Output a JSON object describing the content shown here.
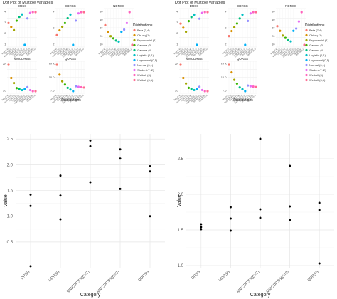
{
  "chart_data": [
    {
      "type": "scatter",
      "title": "Dot Plot of Multiple Variables",
      "xlabel": "Distributions",
      "legend_title": "Distributions",
      "legend_position": "right",
      "distributions": [
        "Beta (7,4)",
        "Chi-sq (1)",
        "Exponential (1)",
        "Gamma (3)",
        "Gamma (4)",
        "Logistic (0,1)",
        "Lognormal (0,1)",
        "Normal (0,1)",
        "Student-T (2)",
        "Weibull (6)",
        "Weibull (6,1)"
      ],
      "colors": [
        "#F8766D",
        "#D89000",
        "#A3A500",
        "#39B600",
        "#00BF7D",
        "#00BFC4",
        "#00B0F6",
        "#9590FF",
        "#E76BF3",
        "#FF62BC",
        "#FF6C91"
      ],
      "panels": [
        {
          "title": "DRSS",
          "values": [
            3.1,
            2.6,
            2.2,
            3.4,
            3.9,
            4.2,
            0.3,
            3.7,
            4.4,
            4.5,
            4.5
          ],
          "yticks": [
            "4",
            "3",
            "2",
            "1"
          ]
        },
        {
          "title": "EDRSS",
          "values": [
            2.1,
            2.5,
            2.8,
            3.1,
            3.5,
            3.8,
            1.3,
            3.3,
            3.9,
            4.0,
            4.0
          ],
          "yticks": [
            "4",
            "3",
            "2"
          ]
        },
        {
          "title": "NDRSS",
          "values": [
            1.8,
            1.5,
            1.3,
            1.2,
            1.1,
            1.05,
            1.5,
            1.6,
            1.9,
            2.4,
            0.9
          ],
          "yticks": [
            "50",
            "40",
            "30",
            "20",
            "10"
          ]
        },
        {
          "title": "MMCDRSS",
          "values": [
            35,
            22,
            17,
            12,
            11,
            10,
            11,
            13,
            10,
            9,
            9
          ],
          "yticks": [
            "40",
            "20"
          ]
        },
        {
          "title": "QDRSS",
          "values": [
            15,
            12,
            10,
            9,
            8,
            7.5,
            7,
            8.5,
            8.3,
            8.2,
            8.1
          ],
          "yticks": [
            "12.5",
            "10.0",
            "7.5"
          ]
        }
      ]
    },
    {
      "type": "scatter",
      "title": "Dot Plot of Multiple Variables",
      "xlabel": "Distributions",
      "legend_title": "Distributions",
      "legend_position": "right",
      "distributions": [
        "Beta (7,4)",
        "Chi-sq (1)",
        "Exponential (1)",
        "Gamma (3)",
        "Gamma (4)",
        "Logistic (0,1)",
        "Lognormal (0,1)",
        "Normal (0,1)",
        "Student-T (2)",
        "Weibull (6)",
        "Weibull (6,1)"
      ],
      "colors": [
        "#F8766D",
        "#D89000",
        "#A3A500",
        "#39B600",
        "#00BF7D",
        "#00BFC4",
        "#00B0F6",
        "#9590FF",
        "#E76BF3",
        "#FF62BC",
        "#FF6C91"
      ],
      "panels": [
        {
          "title": "DRSS",
          "values": [
            3.0,
            2.5,
            2.0,
            3.3,
            3.8,
            4.1,
            0.4,
            3.6,
            4.3,
            4.4,
            4.4
          ],
          "yticks": [
            "4",
            "3",
            "2",
            "1"
          ]
        },
        {
          "title": "EDRSS",
          "values": [
            2.0,
            2.4,
            2.7,
            3.0,
            3.4,
            3.7,
            1.3,
            3.2,
            3.8,
            3.9,
            3.9
          ],
          "yticks": [
            "4",
            "3",
            "2"
          ]
        },
        {
          "title": "NDRSS",
          "values": [
            1.7,
            1.5,
            1.3,
            1.2,
            1.1,
            1.05,
            1.5,
            1.6,
            1.9,
            2.3,
            0.9
          ],
          "yticks": [
            "50",
            "40",
            "30",
            "20",
            "10"
          ]
        },
        {
          "title": "MMCDRSS",
          "values": [
            33,
            21,
            16,
            12,
            11,
            10,
            11,
            13,
            10,
            9,
            9
          ],
          "yticks": [
            "40",
            "20"
          ]
        },
        {
          "title": "QDRSS",
          "values": [
            14,
            12,
            10,
            9,
            8,
            7.5,
            7,
            8.5,
            8.3,
            8.2,
            8.1
          ],
          "yticks": [
            "12.5",
            "10.0",
            "7.5"
          ]
        }
      ]
    },
    {
      "type": "scatter",
      "xlabel": "Category",
      "ylabel": "Value",
      "categories": [
        "DRSS",
        "MDRSS",
        "MMCDRSS(C=2)",
        "MMCDRSS(C=3)",
        "QDRSS"
      ],
      "ylim": [
        0.0,
        2.6
      ],
      "yticks": [
        0.5,
        1.0,
        1.5,
        2.0,
        2.5
      ],
      "ytick_labels": [
        "0.5",
        "1.0",
        "1.5",
        "2.0",
        "2.5"
      ],
      "points": [
        {
          "x": "DRSS",
          "y": 1.42
        },
        {
          "x": "DRSS",
          "y": 1.2
        },
        {
          "x": "DRSS",
          "y": 0.03
        },
        {
          "x": "MDRSS",
          "y": 1.79
        },
        {
          "x": "MDRSS",
          "y": 1.4
        },
        {
          "x": "MDRSS",
          "y": 0.94
        },
        {
          "x": "MMCDRSS(C=2)",
          "y": 2.47
        },
        {
          "x": "MMCDRSS(C=2)",
          "y": 2.36
        },
        {
          "x": "MMCDRSS(C=2)",
          "y": 1.66
        },
        {
          "x": "MMCDRSS(C=3)",
          "y": 2.3
        },
        {
          "x": "MMCDRSS(C=3)",
          "y": 2.12
        },
        {
          "x": "MMCDRSS(C=3)",
          "y": 1.53
        },
        {
          "x": "QDRSS",
          "y": 1.97
        },
        {
          "x": "QDRSS",
          "y": 1.87
        },
        {
          "x": "QDRSS",
          "y": 1.0
        }
      ]
    },
    {
      "type": "scatter",
      "xlabel": "Category",
      "ylabel": "Value",
      "categories": [
        "DRSS",
        "MDRSS",
        "MMCDRSS(C=2)",
        "MMCDRSS(C=3)",
        "QDRSS"
      ],
      "ylim": [
        0.97,
        2.85
      ],
      "yticks": [
        1.0,
        1.5,
        2.0,
        2.5
      ],
      "ytick_labels": [
        "1.0",
        "1.5",
        "2.0",
        "2.5"
      ],
      "points": [
        {
          "x": "DRSS",
          "y": 1.58
        },
        {
          "x": "DRSS",
          "y": 1.54
        },
        {
          "x": "DRSS",
          "y": 1.51
        },
        {
          "x": "MDRSS",
          "y": 1.82
        },
        {
          "x": "MDRSS",
          "y": 1.66
        },
        {
          "x": "MDRSS",
          "y": 1.49
        },
        {
          "x": "MMCDRSS(C=2)",
          "y": 2.78
        },
        {
          "x": "MMCDRSS(C=2)",
          "y": 1.79
        },
        {
          "x": "MMCDRSS(C=2)",
          "y": 1.67
        },
        {
          "x": "MMCDRSS(C=3)",
          "y": 2.4
        },
        {
          "x": "MMCDRSS(C=3)",
          "y": 1.83
        },
        {
          "x": "MMCDRSS(C=3)",
          "y": 1.64
        },
        {
          "x": "QDRSS",
          "y": 1.88
        },
        {
          "x": "QDRSS",
          "y": 1.78
        },
        {
          "x": "QDRSS",
          "y": 1.03
        }
      ]
    }
  ]
}
